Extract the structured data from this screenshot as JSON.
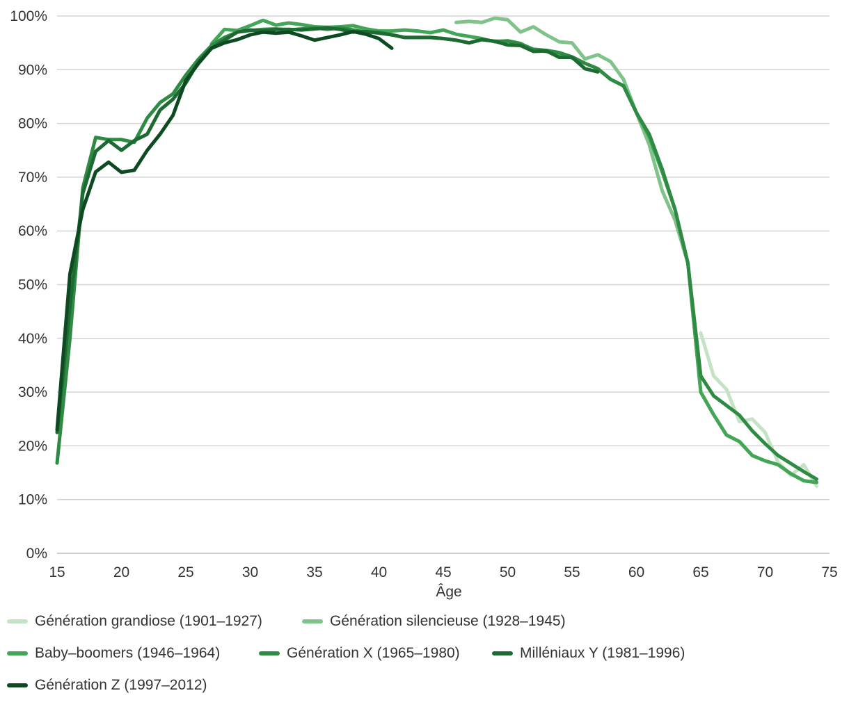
{
  "chart_data": {
    "type": "line",
    "xlabel": "Âge",
    "ylabel": "",
    "xlim": [
      15,
      75
    ],
    "ylim": [
      0,
      100
    ],
    "x_ticks": [
      15,
      20,
      25,
      30,
      35,
      40,
      45,
      50,
      55,
      60,
      65,
      70,
      75
    ],
    "y_ticks": [
      0,
      10,
      20,
      30,
      40,
      50,
      60,
      70,
      80,
      90,
      100
    ],
    "y_tick_format": "percent",
    "grid": "horizontal",
    "legend_position": "bottom",
    "series": [
      {
        "name": "Génération grandiose (1901–1927)",
        "color": "#c4e3c4",
        "x": [
          65,
          66,
          67,
          68,
          69,
          70,
          71,
          72,
          73,
          74
        ],
        "y": [
          41,
          33,
          30.5,
          24.5,
          25,
          22.5,
          17,
          14.5,
          16.5,
          12.5
        ]
      },
      {
        "name": "Génération silencieuse (1928–1945)",
        "color": "#7fc38a",
        "x": [
          46,
          47,
          48,
          49,
          50,
          51,
          52,
          53,
          54,
          55,
          56,
          57,
          58,
          59,
          60,
          61,
          62,
          63,
          64,
          65,
          66,
          67,
          68,
          69,
          70,
          71,
          72,
          73,
          74
        ],
        "y": [
          98.8,
          99,
          98.8,
          99.6,
          99.3,
          97,
          98,
          96.5,
          95.2,
          95,
          92,
          92.8,
          91.5,
          88.2,
          82,
          76,
          67.5,
          62,
          54,
          30,
          25.8,
          22,
          20.8,
          18.2,
          17.2,
          16.5,
          14.8,
          13.5,
          13.2
        ]
      },
      {
        "name": "Baby–boomers (1946–1964)",
        "color": "#43a656",
        "x": [
          27,
          28,
          29,
          30,
          31,
          32,
          33,
          34,
          35,
          36,
          37,
          38,
          39,
          40,
          41,
          42,
          43,
          44,
          45,
          46,
          47,
          48,
          49,
          50,
          51,
          52,
          53,
          54,
          55,
          56,
          57,
          58,
          59,
          60,
          61,
          62,
          63,
          64,
          65,
          66,
          67,
          68,
          69,
          70,
          71,
          72,
          73,
          74
        ],
        "y": [
          94.8,
          97.5,
          97.3,
          98.2,
          99.2,
          98.3,
          98.7,
          98.4,
          98,
          97.9,
          98,
          98.2,
          97.6,
          97.2,
          97.2,
          97.4,
          97.2,
          96.9,
          97.4,
          96.6,
          96.2,
          95.8,
          95.2,
          95.4,
          94.9,
          93.6,
          93.4,
          93,
          92.2,
          91.2,
          90.2,
          88.2,
          87,
          82,
          77.5,
          71,
          64,
          54,
          30,
          25.8,
          22,
          20.8,
          18.2,
          17.2,
          16.5,
          14.8,
          13.5,
          13.2
        ]
      },
      {
        "name": "Génération X (1965–1980)",
        "color": "#2f8a44",
        "x": [
          15,
          16,
          17,
          18,
          19,
          20,
          21,
          22,
          23,
          24,
          25,
          26,
          27,
          28,
          29,
          30,
          31,
          32,
          33,
          34,
          35,
          36,
          37,
          38,
          39,
          40,
          41,
          42,
          43,
          44,
          45,
          46,
          47,
          48,
          49,
          50,
          51,
          52,
          53,
          54,
          55,
          56,
          57,
          58,
          59,
          60,
          61,
          62,
          63,
          64,
          65,
          66,
          67,
          68,
          69,
          70,
          71,
          72,
          73,
          74
        ],
        "y": [
          16.8,
          40,
          68,
          77.4,
          77,
          77,
          76.5,
          81,
          83.9,
          85.5,
          89,
          92,
          94.5,
          96,
          97,
          97.3,
          97.5,
          97.6,
          97.4,
          97.6,
          97.8,
          97.5,
          97.8,
          97.4,
          97,
          97,
          96.5,
          96,
          96,
          96,
          95.8,
          95.5,
          95,
          95.6,
          95.3,
          95.3,
          94.8,
          93.8,
          93.6,
          93.2,
          92.4,
          91.2,
          90.2,
          88.2,
          87,
          82,
          78,
          71.5,
          64,
          54,
          33,
          29.3,
          27.5,
          25.7,
          22.8,
          20.4,
          18.2,
          16.7,
          15.2,
          13.8
        ]
      },
      {
        "name": "Milléniaux Y (1981–1996)",
        "color": "#1d6b33",
        "x": [
          15,
          16,
          17,
          18,
          19,
          20,
          21,
          22,
          23,
          24,
          25,
          26,
          27,
          28,
          29,
          30,
          31,
          32,
          33,
          34,
          35,
          36,
          37,
          38,
          39,
          40,
          41,
          42,
          43,
          44,
          45,
          46,
          47,
          48,
          49,
          50,
          51,
          52,
          53,
          54,
          55,
          56,
          57
        ],
        "y": [
          22.5,
          46,
          67,
          74.8,
          76.8,
          75,
          76.8,
          78,
          82.5,
          84.5,
          87.5,
          91.5,
          94,
          95.5,
          97,
          97.4,
          97.2,
          97.5,
          97.5,
          97.4,
          97.6,
          97.8,
          97.5,
          97,
          97.1,
          96.8,
          96.5,
          96,
          96,
          96,
          95.8,
          95.5,
          95,
          95.6,
          95.3,
          94.6,
          94.5,
          93.4,
          93.5,
          92.3,
          92.3,
          90.2,
          89.6
        ]
      },
      {
        "name": "Génération Z (1997–2012)",
        "color": "#0d4a22",
        "x": [
          15,
          16,
          17,
          18,
          19,
          20,
          21,
          22,
          23,
          24,
          25,
          26,
          27,
          28,
          29,
          30,
          31,
          32,
          33,
          34,
          35,
          36,
          37,
          38,
          39,
          40,
          41
        ],
        "y": [
          23,
          52,
          64,
          71,
          72.8,
          70.9,
          71.3,
          75,
          78,
          81.5,
          88,
          91.2,
          94,
          95,
          95.6,
          96.5,
          97,
          96.8,
          97,
          96.3,
          95.5,
          96,
          96.5,
          97.1,
          96.6,
          95.8,
          94
        ]
      }
    ]
  }
}
